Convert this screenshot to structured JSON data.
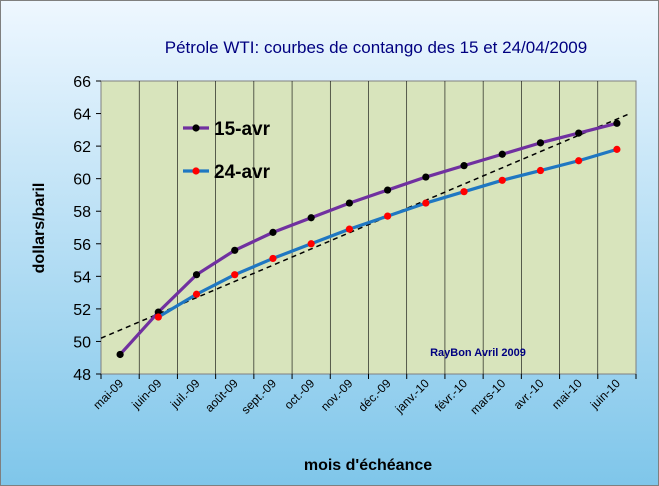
{
  "chart_data": {
    "type": "line",
    "title": "Pétrole WTI: courbes de contango des 15 et 24/04/2009",
    "xlabel": "mois d'échéance",
    "ylabel": "dollars/baril",
    "categories": [
      "mai-09",
      "juin-09",
      "juil.-09",
      "août-09",
      "sept.-09",
      "oct.-09",
      "nov.-09",
      "déc.-09",
      "janv.-10",
      "févr.-10",
      "mars-10",
      "avr.-10",
      "mai-10",
      "juin-10"
    ],
    "ylim": [
      48,
      66
    ],
    "yticks": [
      "48",
      "50",
      "52",
      "54",
      "56",
      "58",
      "60",
      "62",
      "64",
      "66"
    ],
    "grid": "vertical",
    "legend_position": "top-left",
    "series": [
      {
        "name": "15-avr",
        "color": "#7030a0",
        "marker_color": "#000000",
        "values": [
          49.2,
          51.8,
          54.1,
          55.6,
          56.7,
          57.6,
          58.5,
          59.3,
          60.1,
          60.8,
          61.5,
          62.2,
          62.8,
          63.4
        ]
      },
      {
        "name": "24-avr",
        "color": "#1f77c2",
        "marker_color": "#ff0000",
        "values": [
          null,
          51.5,
          52.9,
          54.1,
          55.1,
          56.0,
          56.9,
          57.7,
          58.5,
          59.2,
          59.9,
          60.5,
          61.1,
          61.8
        ]
      }
    ],
    "trendline": {
      "style": "dashed",
      "color": "#000000",
      "start": 50.2,
      "end": 64.0
    },
    "annotation": "RayBon Avril 2009"
  }
}
